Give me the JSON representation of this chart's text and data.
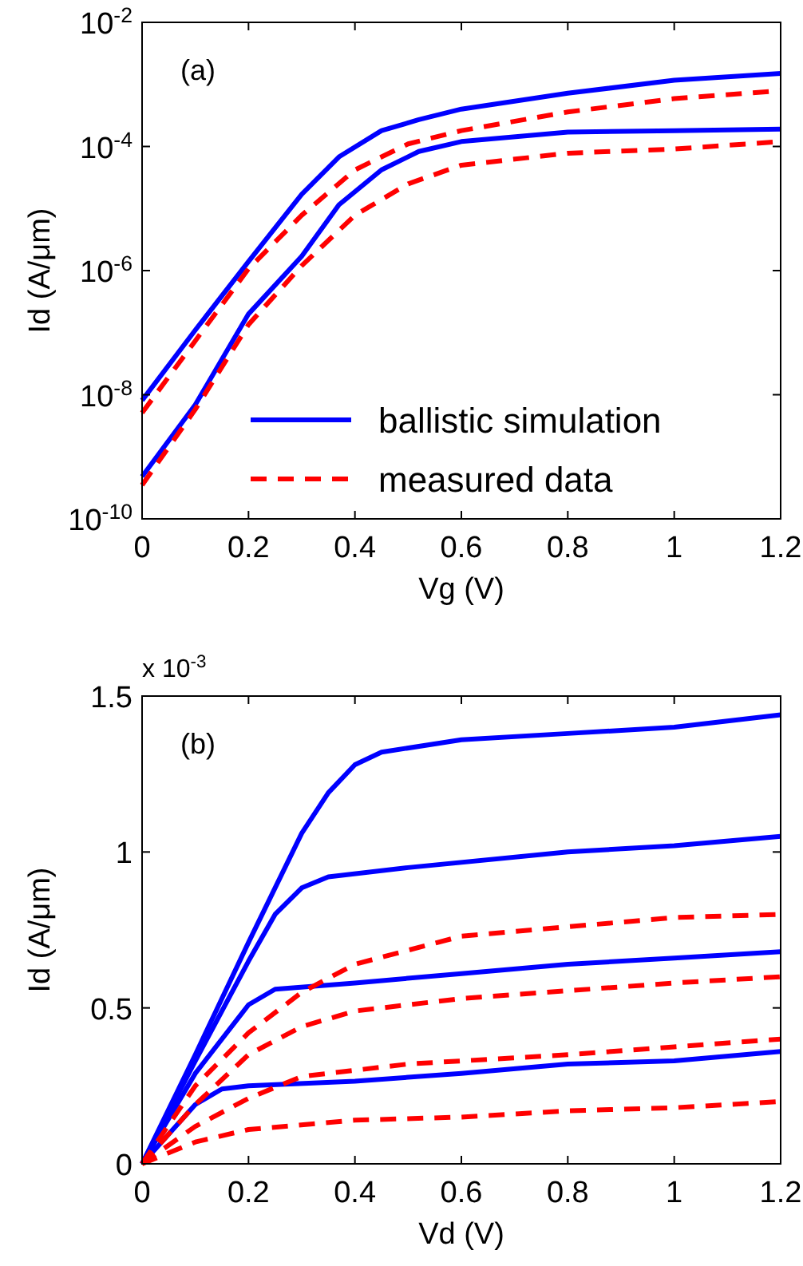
{
  "chart_data": [
    {
      "type": "line",
      "xlabel": "Vg (V)",
      "ylabel": "Id (A/μm)",
      "log": "y",
      "xlim": [
        0,
        1.2
      ],
      "xticks": [
        0,
        0.2,
        0.4,
        0.6,
        0.8,
        1,
        1.2
      ],
      "ylim": [
        1e-10,
        0.01
      ],
      "yticks": [
        {
          "value": 1e-10,
          "label": "10$^{-10}$"
        },
        {
          "value": 1e-08,
          "label": "10$^{-8}$"
        },
        {
          "value": 1e-06,
          "label": "10$^{-6}$"
        },
        {
          "value": 0.0001,
          "label": "10$^{-4}$"
        },
        {
          "value": 0.01,
          "label": "10$^{-2}$"
        }
      ],
      "grid": false,
      "legend": "bottom right",
      "annotations": [
        "(a)"
      ],
      "series": [
        {
          "name": "ballistic simulation",
          "color": "#0000ff",
          "line_style": "solid",
          "x": [
            0,
            0.1,
            0.2,
            0.3,
            0.37,
            0.45,
            0.52,
            0.6,
            0.8,
            1.0,
            1.2
          ],
          "values": [
            8.1e-09,
            1.1e-07,
            1.4e-06,
            1.7e-05,
            6.8e-05,
            0.00018,
            0.00027,
            0.0004,
            0.00072,
            0.00117,
            0.0015
          ]
        },
        {
          "name": "measured data",
          "color": "#ff0000",
          "line_style": "dashed",
          "x": [
            0,
            0.1,
            0.2,
            0.3,
            0.4,
            0.5,
            0.6,
            0.8,
            1.0,
            1.2
          ],
          "values": [
            5.1e-09,
            7.4e-08,
            1.07e-06,
            7.8e-06,
            4.2e-05,
            0.00011,
            0.00018,
            0.00036,
            0.00059,
            0.00079
          ]
        },
        {
          "color": "#0000ff",
          "line_style": "solid",
          "x": [
            0,
            0.1,
            0.2,
            0.3,
            0.37,
            0.45,
            0.52,
            0.6,
            0.8,
            1.0,
            1.2
          ],
          "values": [
            4.8e-10,
            6.9e-09,
            2e-07,
            1.7e-06,
            1.15e-05,
            4.2e-05,
            8.3e-05,
            0.00012,
            0.00017,
            0.00018,
            0.00019
          ]
        },
        {
          "color": "#ff0000",
          "line_style": "dashed",
          "x": [
            0,
            0.1,
            0.2,
            0.3,
            0.4,
            0.5,
            0.6,
            0.8,
            1.0,
            1.2
          ],
          "values": [
            3.5e-10,
            5.8e-09,
            1.35e-07,
            1.2e-06,
            7.8e-06,
            2.5e-05,
            5e-05,
            7.8e-05,
            9.1e-05,
            0.00012
          ]
        }
      ]
    },
    {
      "type": "line",
      "xlabel": "Vd (V)",
      "ylabel": "Id (A/μm)",
      "xlim": [
        0,
        1.2
      ],
      "xticks": [
        0,
        0.2,
        0.4,
        0.6,
        0.8,
        1,
        1.2
      ],
      "ylim": [
        0,
        1.5
      ],
      "yticks": [
        0,
        0.5,
        1,
        1.5
      ],
      "grid": false,
      "annotations": [
        "(b)",
        "x 10$^{-3}$"
      ],
      "series": [
        {
          "color": "#0000ff",
          "line_style": "solid",
          "x": [
            0,
            0.1,
            0.2,
            0.3,
            0.35,
            0.4,
            0.45,
            0.6,
            0.8,
            1.0,
            1.2
          ],
          "values": [
            0,
            0.35,
            0.71,
            1.06,
            1.19,
            1.28,
            1.32,
            1.36,
            1.38,
            1.4,
            1.44
          ]
        },
        {
          "color": "#0000ff",
          "line_style": "solid",
          "x": [
            0,
            0.1,
            0.2,
            0.25,
            0.3,
            0.35,
            0.5,
            0.8,
            1.0,
            1.2
          ],
          "values": [
            0,
            0.33,
            0.65,
            0.8,
            0.885,
            0.92,
            0.95,
            1.0,
            1.02,
            1.05
          ]
        },
        {
          "color": "#0000ff",
          "line_style": "solid",
          "x": [
            0,
            0.1,
            0.2,
            0.25,
            0.4,
            0.6,
            0.8,
            1.0,
            1.2
          ],
          "values": [
            0,
            0.29,
            0.51,
            0.56,
            0.58,
            0.61,
            0.64,
            0.66,
            0.68
          ]
        },
        {
          "color": "#0000ff",
          "line_style": "solid",
          "x": [
            0,
            0.1,
            0.15,
            0.2,
            0.4,
            0.6,
            0.8,
            1.0,
            1.2
          ],
          "values": [
            0,
            0.19,
            0.24,
            0.25,
            0.265,
            0.29,
            0.32,
            0.33,
            0.36
          ]
        },
        {
          "color": "#ff0000",
          "line_style": "dashed",
          "x": [
            0,
            0.1,
            0.2,
            0.3,
            0.4,
            0.6,
            0.8,
            1.0,
            1.2
          ],
          "values": [
            0,
            0.25,
            0.42,
            0.55,
            0.64,
            0.73,
            0.76,
            0.79,
            0.8
          ]
        },
        {
          "color": "#ff0000",
          "line_style": "dashed",
          "x": [
            0,
            0.1,
            0.2,
            0.3,
            0.4,
            0.6,
            0.8,
            1.0,
            1.2
          ],
          "values": [
            0,
            0.19,
            0.35,
            0.44,
            0.49,
            0.53,
            0.555,
            0.58,
            0.6
          ]
        },
        {
          "color": "#ff0000",
          "line_style": "dashed",
          "x": [
            0,
            0.1,
            0.2,
            0.3,
            0.5,
            0.8,
            1.0,
            1.2
          ],
          "values": [
            0,
            0.12,
            0.21,
            0.28,
            0.32,
            0.35,
            0.375,
            0.4
          ]
        },
        {
          "color": "#ff0000",
          "line_style": "dashed",
          "x": [
            0,
            0.1,
            0.2,
            0.4,
            0.6,
            0.8,
            1.0,
            1.2
          ],
          "values": [
            0,
            0.07,
            0.11,
            0.14,
            0.15,
            0.17,
            0.18,
            0.2
          ]
        }
      ]
    }
  ]
}
